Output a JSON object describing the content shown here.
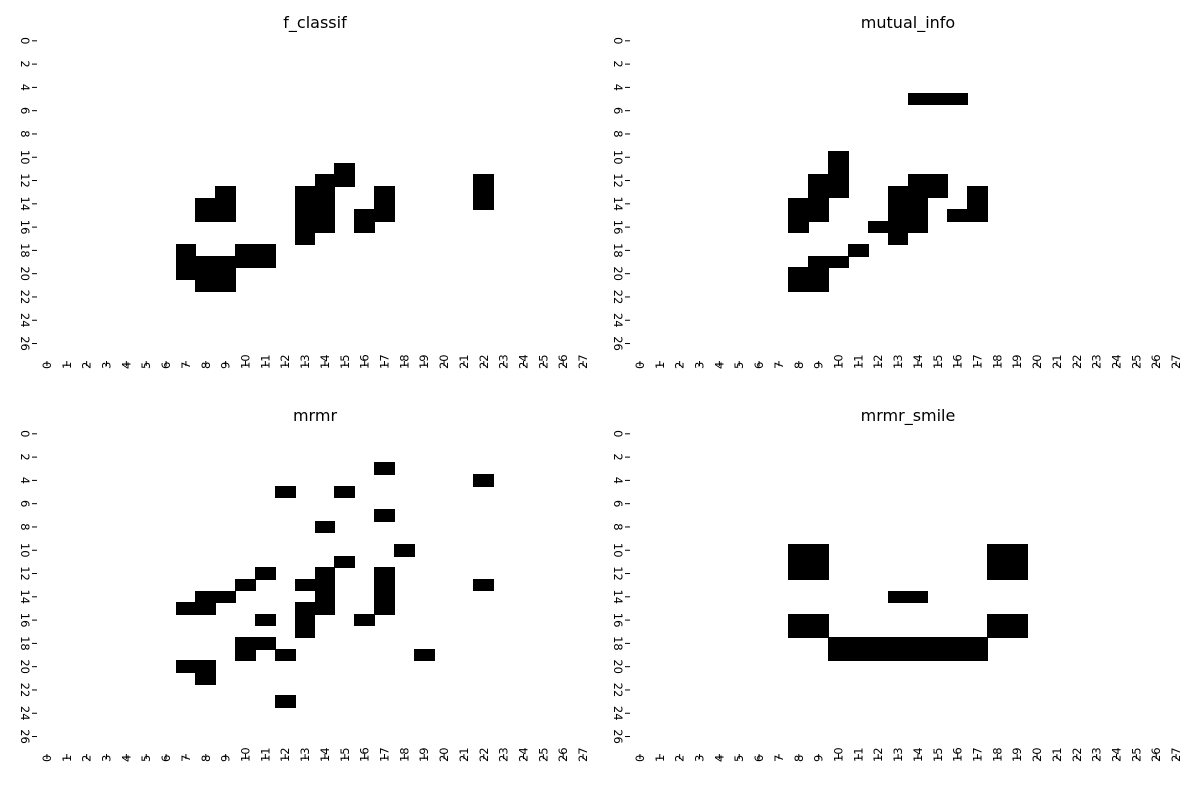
{
  "chart_data": [
    {
      "type": "heatmap",
      "title": "f_classif",
      "xlabel": "",
      "ylabel": "",
      "grid": false,
      "n_cols": 28,
      "n_rows": 28,
      "x_tick_labels": [
        "0",
        "1",
        "2",
        "3",
        "4",
        "5",
        "6",
        "7",
        "8",
        "9",
        "10",
        "11",
        "12",
        "13",
        "14",
        "15",
        "16",
        "17",
        "18",
        "19",
        "20",
        "21",
        "22",
        "23",
        "24",
        "25",
        "26",
        "27"
      ],
      "y_tick_labels": [
        "0",
        "2",
        "4",
        "6",
        "8",
        "10",
        "12",
        "14",
        "16",
        "18",
        "20",
        "22",
        "24",
        "26"
      ],
      "cell_colors": {
        "selected": "#000000",
        "unselected": "#ffffff"
      },
      "selected_cells": [
        [
          11,
          15
        ],
        [
          12,
          14
        ],
        [
          12,
          15
        ],
        [
          12,
          22
        ],
        [
          13,
          9
        ],
        [
          13,
          13
        ],
        [
          13,
          14
        ],
        [
          13,
          17
        ],
        [
          13,
          22
        ],
        [
          14,
          8
        ],
        [
          14,
          9
        ],
        [
          14,
          13
        ],
        [
          14,
          14
        ],
        [
          14,
          17
        ],
        [
          14,
          22
        ],
        [
          15,
          8
        ],
        [
          15,
          9
        ],
        [
          15,
          13
        ],
        [
          15,
          14
        ],
        [
          15,
          16
        ],
        [
          15,
          17
        ],
        [
          16,
          13
        ],
        [
          16,
          14
        ],
        [
          16,
          16
        ],
        [
          17,
          13
        ],
        [
          18,
          7
        ],
        [
          18,
          10
        ],
        [
          18,
          11
        ],
        [
          19,
          7
        ],
        [
          19,
          8
        ],
        [
          19,
          9
        ],
        [
          19,
          10
        ],
        [
          19,
          11
        ],
        [
          20,
          7
        ],
        [
          20,
          8
        ],
        [
          20,
          9
        ],
        [
          21,
          8
        ],
        [
          21,
          9
        ]
      ]
    },
    {
      "type": "heatmap",
      "title": "mutual_info",
      "xlabel": "",
      "ylabel": "",
      "grid": false,
      "n_cols": 28,
      "n_rows": 28,
      "x_tick_labels": [
        "0",
        "1",
        "2",
        "3",
        "4",
        "5",
        "6",
        "7",
        "8",
        "9",
        "10",
        "11",
        "12",
        "13",
        "14",
        "15",
        "16",
        "17",
        "18",
        "19",
        "20",
        "21",
        "22",
        "23",
        "24",
        "25",
        "26",
        "27"
      ],
      "y_tick_labels": [
        "0",
        "2",
        "4",
        "6",
        "8",
        "10",
        "12",
        "14",
        "16",
        "18",
        "20",
        "22",
        "24",
        "26"
      ],
      "cell_colors": {
        "selected": "#000000",
        "unselected": "#ffffff"
      },
      "selected_cells": [
        [
          5,
          14
        ],
        [
          5,
          15
        ],
        [
          5,
          16
        ],
        [
          10,
          10
        ],
        [
          11,
          10
        ],
        [
          12,
          9
        ],
        [
          12,
          10
        ],
        [
          12,
          14
        ],
        [
          12,
          15
        ],
        [
          13,
          9
        ],
        [
          13,
          10
        ],
        [
          13,
          13
        ],
        [
          13,
          14
        ],
        [
          13,
          15
        ],
        [
          13,
          17
        ],
        [
          14,
          8
        ],
        [
          14,
          9
        ],
        [
          14,
          13
        ],
        [
          14,
          14
        ],
        [
          14,
          17
        ],
        [
          15,
          8
        ],
        [
          15,
          9
        ],
        [
          15,
          13
        ],
        [
          15,
          14
        ],
        [
          15,
          16
        ],
        [
          15,
          17
        ],
        [
          16,
          8
        ],
        [
          16,
          12
        ],
        [
          16,
          13
        ],
        [
          16,
          14
        ],
        [
          17,
          13
        ],
        [
          18,
          11
        ],
        [
          19,
          9
        ],
        [
          19,
          10
        ],
        [
          20,
          8
        ],
        [
          20,
          9
        ],
        [
          21,
          8
        ],
        [
          21,
          9
        ]
      ]
    },
    {
      "type": "heatmap",
      "title": "mrmr",
      "xlabel": "",
      "ylabel": "",
      "grid": false,
      "n_cols": 28,
      "n_rows": 28,
      "x_tick_labels": [
        "0",
        "1",
        "2",
        "3",
        "4",
        "5",
        "6",
        "7",
        "8",
        "9",
        "10",
        "11",
        "12",
        "13",
        "14",
        "15",
        "16",
        "17",
        "18",
        "19",
        "20",
        "21",
        "22",
        "23",
        "24",
        "25",
        "26",
        "27"
      ],
      "y_tick_labels": [
        "0",
        "2",
        "4",
        "6",
        "8",
        "10",
        "12",
        "14",
        "16",
        "18",
        "20",
        "22",
        "24",
        "26"
      ],
      "cell_colors": {
        "selected": "#000000",
        "unselected": "#ffffff"
      },
      "selected_cells": [
        [
          3,
          17
        ],
        [
          4,
          22
        ],
        [
          5,
          12
        ],
        [
          5,
          15
        ],
        [
          7,
          17
        ],
        [
          8,
          14
        ],
        [
          10,
          18
        ],
        [
          11,
          15
        ],
        [
          12,
          11
        ],
        [
          12,
          14
        ],
        [
          12,
          17
        ],
        [
          13,
          10
        ],
        [
          13,
          13
        ],
        [
          13,
          14
        ],
        [
          13,
          17
        ],
        [
          13,
          22
        ],
        [
          14,
          8
        ],
        [
          14,
          9
        ],
        [
          14,
          14
        ],
        [
          14,
          17
        ],
        [
          15,
          7
        ],
        [
          15,
          8
        ],
        [
          15,
          13
        ],
        [
          15,
          14
        ],
        [
          15,
          17
        ],
        [
          16,
          11
        ],
        [
          16,
          13
        ],
        [
          16,
          16
        ],
        [
          17,
          13
        ],
        [
          18,
          10
        ],
        [
          18,
          11
        ],
        [
          19,
          10
        ],
        [
          19,
          12
        ],
        [
          19,
          19
        ],
        [
          20,
          7
        ],
        [
          20,
          8
        ],
        [
          21,
          8
        ],
        [
          23,
          12
        ]
      ]
    },
    {
      "type": "heatmap",
      "title": "mrmr_smile",
      "xlabel": "",
      "ylabel": "",
      "grid": false,
      "n_cols": 28,
      "n_rows": 28,
      "x_tick_labels": [
        "0",
        "1",
        "2",
        "3",
        "4",
        "5",
        "6",
        "7",
        "8",
        "9",
        "10",
        "11",
        "12",
        "13",
        "14",
        "15",
        "16",
        "17",
        "18",
        "19",
        "20",
        "21",
        "22",
        "23",
        "24",
        "25",
        "26",
        "27"
      ],
      "y_tick_labels": [
        "0",
        "2",
        "4",
        "6",
        "8",
        "10",
        "12",
        "14",
        "16",
        "18",
        "20",
        "22",
        "24",
        "26"
      ],
      "cell_colors": {
        "selected": "#000000",
        "unselected": "#ffffff"
      },
      "selected_cells": [
        [
          10,
          8
        ],
        [
          10,
          9
        ],
        [
          10,
          18
        ],
        [
          10,
          19
        ],
        [
          11,
          8
        ],
        [
          11,
          9
        ],
        [
          11,
          18
        ],
        [
          11,
          19
        ],
        [
          12,
          8
        ],
        [
          12,
          9
        ],
        [
          12,
          18
        ],
        [
          12,
          19
        ],
        [
          14,
          13
        ],
        [
          14,
          14
        ],
        [
          16,
          8
        ],
        [
          16,
          9
        ],
        [
          16,
          18
        ],
        [
          16,
          19
        ],
        [
          17,
          8
        ],
        [
          17,
          9
        ],
        [
          17,
          18
        ],
        [
          17,
          19
        ],
        [
          18,
          10
        ],
        [
          18,
          11
        ],
        [
          18,
          12
        ],
        [
          18,
          13
        ],
        [
          18,
          14
        ],
        [
          18,
          15
        ],
        [
          18,
          16
        ],
        [
          18,
          17
        ],
        [
          19,
          10
        ],
        [
          19,
          11
        ],
        [
          19,
          12
        ],
        [
          19,
          13
        ],
        [
          19,
          14
        ],
        [
          19,
          15
        ],
        [
          19,
          16
        ],
        [
          19,
          17
        ]
      ]
    }
  ]
}
